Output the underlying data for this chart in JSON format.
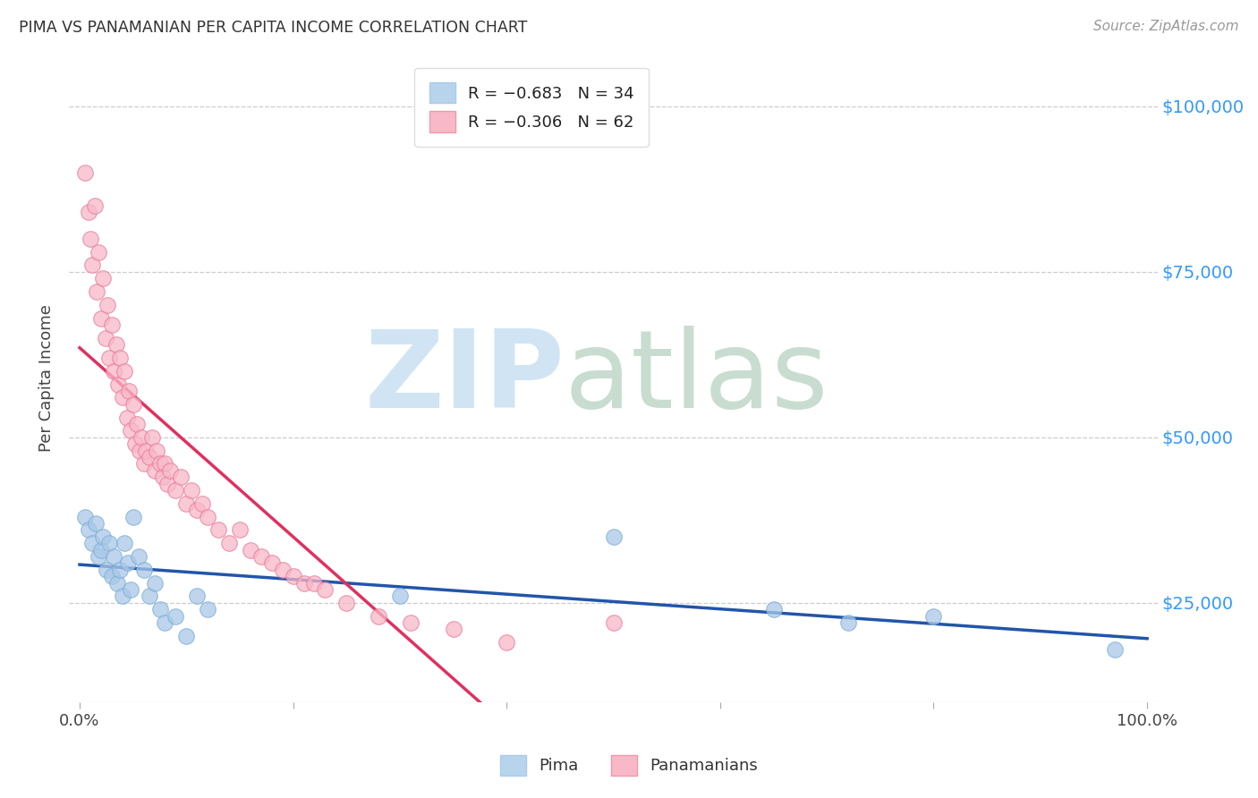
{
  "title": "PIMA VS PANAMANIAN PER CAPITA INCOME CORRELATION CHART",
  "source": "Source: ZipAtlas.com",
  "ylabel": "Per Capita Income",
  "ytick_labels": [
    "$25,000",
    "$50,000",
    "$75,000",
    "$100,000"
  ],
  "ytick_values": [
    25000,
    50000,
    75000,
    100000
  ],
  "ylim": [
    10000,
    108000
  ],
  "xlim": [
    -0.01,
    1.01
  ],
  "pima_color": "#a8c8e8",
  "pima_edge": "#7aadd4",
  "panama_color": "#f8b8c8",
  "panama_edge": "#e87898",
  "pima_line_color": "#2255aa",
  "panama_line_color": "#e03060",
  "watermark_zip_color": "#d0e4f4",
  "watermark_atlas_color": "#c8ddd0",
  "legend_pima_color": "#b8d4ec",
  "legend_panama_color": "#f8b8c8",
  "pima_x": [
    0.005,
    0.008,
    0.012,
    0.015,
    0.018,
    0.02,
    0.022,
    0.025,
    0.028,
    0.03,
    0.032,
    0.035,
    0.038,
    0.04,
    0.042,
    0.045,
    0.048,
    0.05,
    0.055,
    0.06,
    0.065,
    0.07,
    0.075,
    0.08,
    0.09,
    0.1,
    0.11,
    0.12,
    0.3,
    0.5,
    0.65,
    0.72,
    0.8,
    0.97
  ],
  "pima_y": [
    38000,
    36000,
    34000,
    37000,
    32000,
    33000,
    35000,
    30000,
    34000,
    29000,
    32000,
    28000,
    30000,
    26000,
    34000,
    31000,
    27000,
    38000,
    32000,
    30000,
    26000,
    28000,
    24000,
    22000,
    23000,
    20000,
    26000,
    24000,
    26000,
    35000,
    24000,
    22000,
    23000,
    18000
  ],
  "panama_x": [
    0.005,
    0.008,
    0.01,
    0.012,
    0.014,
    0.016,
    0.018,
    0.02,
    0.022,
    0.024,
    0.026,
    0.028,
    0.03,
    0.032,
    0.034,
    0.036,
    0.038,
    0.04,
    0.042,
    0.044,
    0.046,
    0.048,
    0.05,
    0.052,
    0.054,
    0.056,
    0.058,
    0.06,
    0.062,
    0.065,
    0.068,
    0.07,
    0.072,
    0.075,
    0.078,
    0.08,
    0.082,
    0.085,
    0.09,
    0.095,
    0.1,
    0.105,
    0.11,
    0.115,
    0.12,
    0.13,
    0.14,
    0.15,
    0.16,
    0.17,
    0.18,
    0.19,
    0.2,
    0.21,
    0.22,
    0.23,
    0.25,
    0.28,
    0.31,
    0.35,
    0.4,
    0.5
  ],
  "panama_y": [
    90000,
    84000,
    80000,
    76000,
    85000,
    72000,
    78000,
    68000,
    74000,
    65000,
    70000,
    62000,
    67000,
    60000,
    64000,
    58000,
    62000,
    56000,
    60000,
    53000,
    57000,
    51000,
    55000,
    49000,
    52000,
    48000,
    50000,
    46000,
    48000,
    47000,
    50000,
    45000,
    48000,
    46000,
    44000,
    46000,
    43000,
    45000,
    42000,
    44000,
    40000,
    42000,
    39000,
    40000,
    38000,
    36000,
    34000,
    36000,
    33000,
    32000,
    31000,
    30000,
    29000,
    28000,
    28000,
    27000,
    25000,
    23000,
    22000,
    21000,
    19000,
    22000
  ]
}
